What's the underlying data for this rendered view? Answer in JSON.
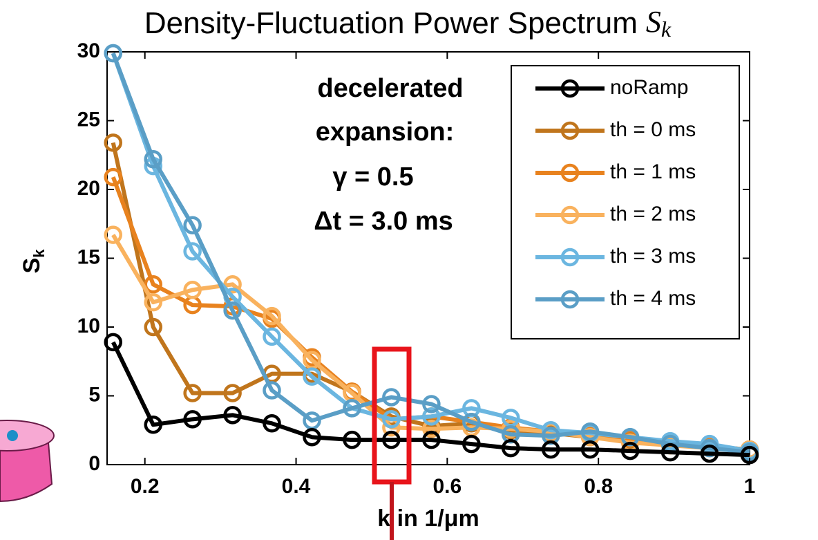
{
  "chart_data": {
    "type": "line",
    "title": "Density-Fluctuation Power Spectrum",
    "title_symbol": "S",
    "title_symbol_sub": "k",
    "ylabel": "S",
    "ylabel_sub": "k",
    "xlabel": "k in 1/μm",
    "annotations": [
      "decelerated",
      "expansion:",
      "γ = 0.5",
      "Δt = 3.0 ms"
    ],
    "x": [
      0.158,
      0.211,
      0.263,
      0.316,
      0.368,
      0.421,
      0.474,
      0.526,
      0.579,
      0.632,
      0.684,
      0.737,
      0.789,
      0.842,
      0.895,
      0.947,
      1.0
    ],
    "series": [
      {
        "name": "th = 0 ms",
        "color": "#c0751c",
        "values": [
          23.4,
          10.0,
          5.2,
          5.2,
          6.6,
          6.6,
          5.3,
          3.5,
          2.8,
          3.0,
          2.5,
          2.3,
          2.0,
          1.8,
          1.6,
          1.3,
          1.1
        ]
      },
      {
        "name": "th = 1 ms",
        "color": "#e8821e",
        "values": [
          20.9,
          13.1,
          11.6,
          11.5,
          10.6,
          7.8,
          5.3,
          3.3,
          3.5,
          3.1,
          2.7,
          2.4,
          2.1,
          1.9,
          1.6,
          1.3,
          1.1
        ]
      },
      {
        "name": "th = 2 ms",
        "color": "#f9b25e",
        "values": [
          16.7,
          11.8,
          12.7,
          13.1,
          10.8,
          7.6,
          5.2,
          2.7,
          2.6,
          2.7,
          2.6,
          2.4,
          2.0,
          1.6,
          1.4,
          1.2,
          1.1
        ]
      },
      {
        "name": "th = 3 ms",
        "color": "#6bb6e0",
        "values": [
          29.9,
          21.7,
          15.5,
          12.2,
          9.3,
          6.4,
          4.1,
          3.3,
          3.5,
          4.1,
          3.4,
          2.5,
          2.3,
          2.0,
          1.7,
          1.5,
          1.0
        ]
      },
      {
        "name": "th = 4 ms",
        "color": "#5a9ec6",
        "values": [
          29.9,
          22.2,
          17.4,
          11.2,
          5.4,
          3.2,
          4.1,
          4.9,
          4.4,
          3.1,
          2.2,
          2.1,
          2.4,
          2.0,
          1.5,
          1.2,
          0.9
        ]
      },
      {
        "name": "noRamp",
        "color": "#000000",
        "values": [
          8.9,
          2.9,
          3.3,
          3.6,
          3.0,
          2.0,
          1.8,
          1.8,
          1.8,
          1.5,
          1.2,
          1.1,
          1.1,
          1.0,
          0.9,
          0.8,
          0.7
        ]
      }
    ],
    "legend_order": [
      5,
      0,
      1,
      2,
      3,
      4
    ],
    "legend_position": "northeast",
    "xlim": [
      0.15,
      1
    ],
    "xticks": [
      0.2,
      0.4,
      0.6,
      0.8,
      1
    ],
    "ylim": [
      0,
      30
    ],
    "yticks": [
      0,
      5,
      10,
      15,
      20,
      25,
      30
    ],
    "grid": false
  }
}
